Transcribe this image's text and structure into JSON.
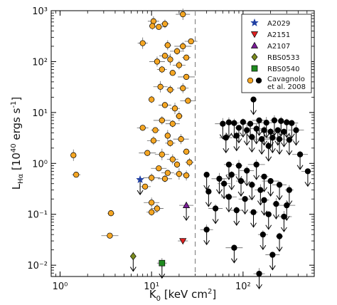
{
  "chart_data": {
    "type": "scatter",
    "xscale": "log",
    "yscale": "log",
    "xlim": [
      0.8,
      600
    ],
    "ylim": [
      0.006,
      1000
    ],
    "xticks": [
      1,
      10,
      100
    ],
    "xtick_labels": [
      "10⁰",
      "10¹",
      "10²"
    ],
    "yticks": [
      0.01,
      0.1,
      1,
      10,
      100,
      1000
    ],
    "ytick_labels": [
      "10⁻²",
      "10⁻¹",
      "10⁰",
      "10¹",
      "10²",
      "10³"
    ],
    "xlabel_parts": [
      "K",
      "0",
      " [keV cm",
      "2",
      "]"
    ],
    "ylabel_parts": [
      "L",
      "Hα",
      " [10",
      "40",
      " ergs s",
      "-1",
      "]"
    ],
    "legend_position": "top-right",
    "reference_line": {
      "x": 30,
      "style": "dashed"
    },
    "series": [
      {
        "name": "A2029",
        "marker": "star",
        "color": "#1f3fa3",
        "points": [
          {
            "x": 7.5,
            "y": 0.48,
            "upper_limit": true
          }
        ]
      },
      {
        "name": "A2151",
        "marker": "triangle-down",
        "color": "#e02020",
        "points": [
          {
            "x": 22,
            "y": 0.03
          }
        ]
      },
      {
        "name": "A2107",
        "marker": "triangle-up",
        "color": "#7a1c96",
        "points": [
          {
            "x": 24,
            "y": 0.15,
            "upper_limit": true
          }
        ]
      },
      {
        "name": "RBS0533",
        "marker": "diamond",
        "color": "#7a8a1e",
        "points": [
          {
            "x": 6.3,
            "y": 0.015,
            "upper_limit": true
          }
        ]
      },
      {
        "name": "RBS0540",
        "marker": "square",
        "color": "#1e8a1e",
        "points": [
          {
            "x": 13,
            "y": 0.011,
            "upper_limit": true
          }
        ]
      },
      {
        "name": "Cavagnolo et al. 2008",
        "name_lines": [
          "Cavagnolo",
          "et al. 2008"
        ],
        "marker": "circle",
        "color": "#f5a623",
        "points": [
          {
            "x": 22,
            "y": 850
          },
          {
            "x": 10.5,
            "y": 620
          },
          {
            "x": 14,
            "y": 550
          },
          {
            "x": 10.2,
            "y": 500
          },
          {
            "x": 12,
            "y": 480
          },
          {
            "x": 27,
            "y": 250
          },
          {
            "x": 8,
            "y": 230
          },
          {
            "x": 15,
            "y": 210
          },
          {
            "x": 22,
            "y": 200
          },
          {
            "x": 19,
            "y": 160
          },
          {
            "x": 14,
            "y": 130
          },
          {
            "x": 24,
            "y": 120
          },
          {
            "x": 16,
            "y": 110
          },
          {
            "x": 11.5,
            "y": 100
          },
          {
            "x": 20,
            "y": 85
          },
          {
            "x": 13,
            "y": 70
          },
          {
            "x": 17,
            "y": 60
          },
          {
            "x": 24,
            "y": 50
          },
          {
            "x": 12.5,
            "y": 32
          },
          {
            "x": 22,
            "y": 30
          },
          {
            "x": 16,
            "y": 28
          },
          {
            "x": 10,
            "y": 18
          },
          {
            "x": 25,
            "y": 17
          },
          {
            "x": 14,
            "y": 14
          },
          {
            "x": 18,
            "y": 12
          },
          {
            "x": 20,
            "y": 8.5
          },
          {
            "x": 13,
            "y": 7
          },
          {
            "x": 17,
            "y": 6
          },
          {
            "x": 8,
            "y": 5
          },
          {
            "x": 11,
            "y": 4.5
          },
          {
            "x": 15,
            "y": 3.5
          },
          {
            "x": 21,
            "y": 3
          },
          {
            "x": 10.5,
            "y": 2.8
          },
          {
            "x": 16,
            "y": 2.5
          },
          {
            "x": 24,
            "y": 1.7
          },
          {
            "x": 9,
            "y": 1.6
          },
          {
            "x": 13,
            "y": 1.5
          },
          {
            "x": 17,
            "y": 1.2
          },
          {
            "x": 26,
            "y": 1.05
          },
          {
            "x": 19,
            "y": 0.95
          },
          {
            "x": 12,
            "y": 0.8
          },
          {
            "x": 15,
            "y": 0.65
          },
          {
            "x": 20,
            "y": 0.62
          },
          {
            "x": 24,
            "y": 0.58
          },
          {
            "x": 10,
            "y": 0.52
          },
          {
            "x": 14,
            "y": 0.5
          },
          {
            "x": 8.5,
            "y": 0.35
          },
          {
            "x": 1.5,
            "y": 0.6
          },
          {
            "x": 1.4,
            "y": 1.45
          },
          {
            "x": 10,
            "y": 0.17
          },
          {
            "x": 11.5,
            "y": 0.13
          },
          {
            "x": 10,
            "y": 0.11
          },
          {
            "x": 3.6,
            "y": 0.105
          },
          {
            "x": 3.5,
            "y": 0.038
          }
        ]
      },
      {
        "name": "Cavagnolo et al. 2008",
        "marker": "circle",
        "color": "#000000",
        "points": [
          {
            "x": 130,
            "y": 18,
            "upper_limit": true
          },
          {
            "x": 60,
            "y": 6,
            "upper_limit": true
          },
          {
            "x": 70,
            "y": 6.4,
            "upper_limit": true
          },
          {
            "x": 80,
            "y": 6.2,
            "upper_limit": true
          },
          {
            "x": 100,
            "y": 6.5,
            "upper_limit": true
          },
          {
            "x": 120,
            "y": 6,
            "upper_limit": true
          },
          {
            "x": 150,
            "y": 7,
            "upper_limit": true
          },
          {
            "x": 180,
            "y": 6.3,
            "upper_limit": true
          },
          {
            "x": 220,
            "y": 7,
            "upper_limit": true
          },
          {
            "x": 260,
            "y": 6.8,
            "upper_limit": true
          },
          {
            "x": 300,
            "y": 6.4,
            "upper_limit": true
          },
          {
            "x": 340,
            "y": 6.2,
            "upper_limit": true
          },
          {
            "x": 90,
            "y": 5,
            "upper_limit": true
          },
          {
            "x": 110,
            "y": 4.5,
            "upper_limit": true
          },
          {
            "x": 140,
            "y": 4.8,
            "upper_limit": true
          },
          {
            "x": 170,
            "y": 4.5,
            "upper_limit": true
          },
          {
            "x": 200,
            "y": 4.2,
            "upper_limit": true
          },
          {
            "x": 240,
            "y": 4.5,
            "upper_limit": true
          },
          {
            "x": 280,
            "y": 4.2,
            "upper_limit": true
          },
          {
            "x": 380,
            "y": 4.5,
            "upper_limit": true
          },
          {
            "x": 65,
            "y": 3.2,
            "upper_limit": true
          },
          {
            "x": 85,
            "y": 3.5,
            "upper_limit": true
          },
          {
            "x": 125,
            "y": 3.3,
            "upper_limit": true
          },
          {
            "x": 160,
            "y": 3.0,
            "upper_limit": true
          },
          {
            "x": 210,
            "y": 3.2,
            "upper_limit": true
          },
          {
            "x": 250,
            "y": 3.0,
            "upper_limit": true
          },
          {
            "x": 320,
            "y": 2.9,
            "upper_limit": true
          },
          {
            "x": 190,
            "y": 2.2,
            "upper_limit": true
          },
          {
            "x": 420,
            "y": 1.5,
            "upper_limit": true
          },
          {
            "x": 510,
            "y": 0.7,
            "upper_limit": true
          },
          {
            "x": 70,
            "y": 0.95,
            "upper_limit": true
          },
          {
            "x": 90,
            "y": 0.9,
            "upper_limit": true
          },
          {
            "x": 140,
            "y": 0.95,
            "upper_limit": true
          },
          {
            "x": 110,
            "y": 0.72,
            "upper_limit": true
          },
          {
            "x": 75,
            "y": 0.6,
            "upper_limit": true
          },
          {
            "x": 170,
            "y": 0.55,
            "upper_limit": true
          },
          {
            "x": 40,
            "y": 0.6,
            "upper_limit": true
          },
          {
            "x": 55,
            "y": 0.5,
            "upper_limit": true
          },
          {
            "x": 62,
            "y": 0.4,
            "upper_limit": true
          },
          {
            "x": 95,
            "y": 0.45,
            "upper_limit": true
          },
          {
            "x": 125,
            "y": 0.38,
            "upper_limit": true
          },
          {
            "x": 200,
            "y": 0.45,
            "upper_limit": true
          },
          {
            "x": 250,
            "y": 0.38,
            "upper_limit": true
          },
          {
            "x": 155,
            "y": 0.3,
            "upper_limit": true
          },
          {
            "x": 320,
            "y": 0.3,
            "upper_limit": true
          },
          {
            "x": 42,
            "y": 0.28,
            "upper_limit": true
          },
          {
            "x": 70,
            "y": 0.22,
            "upper_limit": true
          },
          {
            "x": 105,
            "y": 0.2,
            "upper_limit": true
          },
          {
            "x": 170,
            "y": 0.19,
            "upper_limit": true
          },
          {
            "x": 230,
            "y": 0.16,
            "upper_limit": true
          },
          {
            "x": 300,
            "y": 0.15,
            "upper_limit": true
          },
          {
            "x": 50,
            "y": 0.13,
            "upper_limit": true
          },
          {
            "x": 85,
            "y": 0.12,
            "upper_limit": true
          },
          {
            "x": 130,
            "y": 0.11,
            "upper_limit": true
          },
          {
            "x": 190,
            "y": 0.1,
            "upper_limit": true
          },
          {
            "x": 280,
            "y": 0.09,
            "upper_limit": true
          },
          {
            "x": 40,
            "y": 0.05,
            "upper_limit": true
          },
          {
            "x": 165,
            "y": 0.04,
            "upper_limit": true
          },
          {
            "x": 250,
            "y": 0.037,
            "upper_limit": true
          },
          {
            "x": 80,
            "y": 0.022,
            "upper_limit": true
          },
          {
            "x": 210,
            "y": 0.016,
            "upper_limit": true
          },
          {
            "x": 150,
            "y": 0.0068,
            "upper_limit": true
          }
        ]
      }
    ]
  }
}
